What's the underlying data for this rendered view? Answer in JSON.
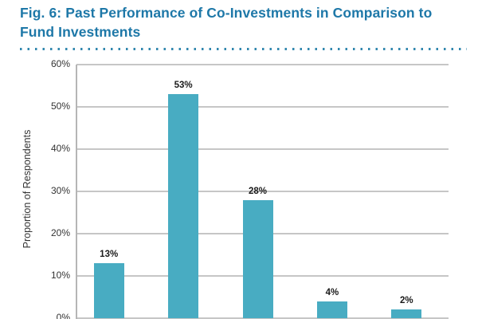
{
  "header": {
    "title_line1": "Fig. 6: Past Performance of Co-Investments in Comparison to",
    "title_line2": "Fund Investments"
  },
  "chart_data": {
    "type": "bar",
    "title": "Fig. 6: Past Performance of Co-Investments in Comparison to Fund Investments",
    "ylabel": "Proportion of Respondents",
    "values": [
      13,
      53,
      28,
      4,
      2
    ],
    "bar_labels": [
      "13%",
      "53%",
      "28%",
      "4%",
      "2%"
    ],
    "ylim": [
      0,
      60
    ],
    "yticks": [
      60,
      50,
      40,
      30,
      20,
      10,
      0
    ],
    "ytick_labels": [
      "60%",
      "50%",
      "40%",
      "30%",
      "20%",
      "10%",
      "0%"
    ],
    "grid": true,
    "legend": false,
    "x_axis_labels_visible": false
  },
  "colors": {
    "title": "#1E78A8",
    "dotted_rule": "#3187AE",
    "bar": "#48ACC2",
    "gridline": "#C6C6C6",
    "axis": "#B5B5B5",
    "label_text": "#1a1a1a"
  }
}
